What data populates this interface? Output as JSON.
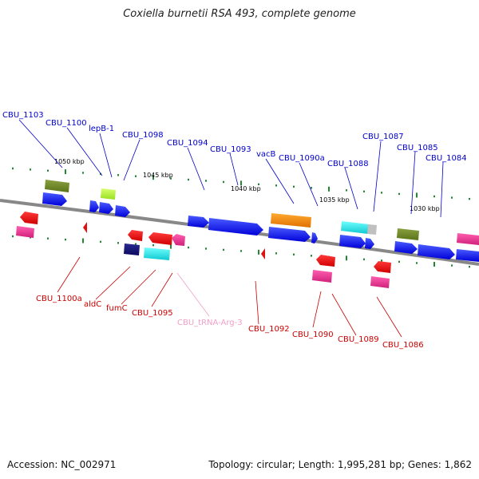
{
  "title": "Coxiella burnetii RSA 493, complete genome",
  "footer": {
    "accession": "Accession: NC_002971",
    "summary": "Topology: circular; Length: 1,995,281 bp; Genes: 1,862"
  },
  "colors": {
    "backbone": "#888888",
    "forward_label": "#0000cc",
    "reverse_label": "#cc0000",
    "trna_label": "#f0a0c8",
    "tick": "#228833"
  },
  "scale_labels": [
    "1050 kbp",
    "1045 kbp",
    "1040 kbp",
    "1035 kbp",
    "1030 kbp"
  ],
  "gene_labels_forward": [
    "CBU_1103",
    "CBU_1100",
    "lepB-1",
    "CBU_1098",
    "CBU_1094",
    "CBU_1093",
    "vacB",
    "CBU_1090a",
    "CBU_1088",
    "CBU_1087",
    "CBU_1085",
    "CBU_1084"
  ],
  "gene_labels_reverse": [
    "CBU_1100a",
    "aldC",
    "fumC",
    "CBU_1095",
    "CBU_tRNA-Arg-3",
    "CBU_1092",
    "CBU_1090",
    "CBU_1089",
    "CBU_1086"
  ]
}
